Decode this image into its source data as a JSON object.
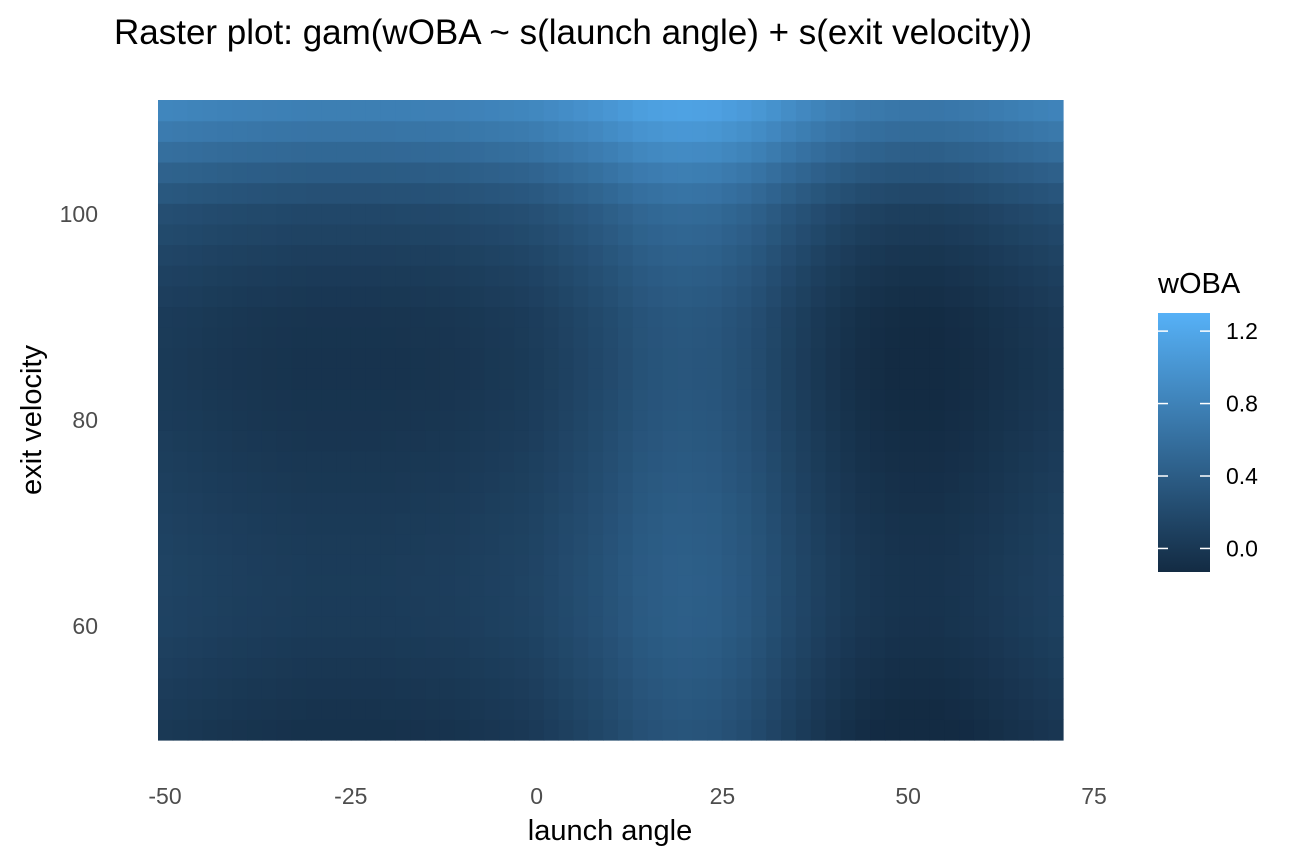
{
  "chart_data": {
    "type": "heatmap",
    "title": "Raster plot: gam(wOBA ~ s(launch angle) + s(exit velocity))",
    "xlabel": "launch angle",
    "ylabel": "exit velocity",
    "xlim": [
      -50,
      75
    ],
    "ylim": [
      50,
      110
    ],
    "x_ticks": [
      "-50",
      "-25",
      "0",
      "25",
      "50",
      "75"
    ],
    "y_ticks": [
      "60",
      "80",
      "100"
    ],
    "grid": false,
    "legend": {
      "title": "wOBA",
      "position": "right",
      "ticks": [
        "0.0",
        "0.4",
        "0.8",
        "1.2"
      ],
      "range": [
        -0.13,
        1.3
      ],
      "low_color": "#132B43",
      "high_color": "#56B1F7"
    },
    "raster": {
      "x_range": [
        -50,
        72
      ],
      "y_range": [
        49,
        111
      ],
      "x_step": 2,
      "y_step": 2,
      "launch_angle_profile": {
        "x": [
          -50,
          -40,
          -30,
          -20,
          -10,
          0,
          10,
          15,
          20,
          25,
          30,
          35,
          40,
          45,
          50,
          55,
          60,
          65,
          72
        ],
        "wOBA": [
          0.05,
          0.0,
          -0.03,
          -0.03,
          -0.01,
          0.05,
          0.2,
          0.3,
          0.35,
          0.33,
          0.25,
          0.12,
          0.0,
          -0.08,
          -0.12,
          -0.12,
          -0.09,
          -0.04,
          0.03
        ]
      },
      "exit_velocity_profile": {
        "y": [
          49,
          55,
          60,
          65,
          70,
          75,
          80,
          85,
          90,
          95,
          100,
          103,
          106,
          108,
          111
        ],
        "wOBA": [
          -0.04,
          0.02,
          0.07,
          0.08,
          0.06,
          0.03,
          0.0,
          -0.02,
          0.0,
          0.08,
          0.2,
          0.35,
          0.55,
          0.68,
          0.85
        ]
      }
    }
  }
}
